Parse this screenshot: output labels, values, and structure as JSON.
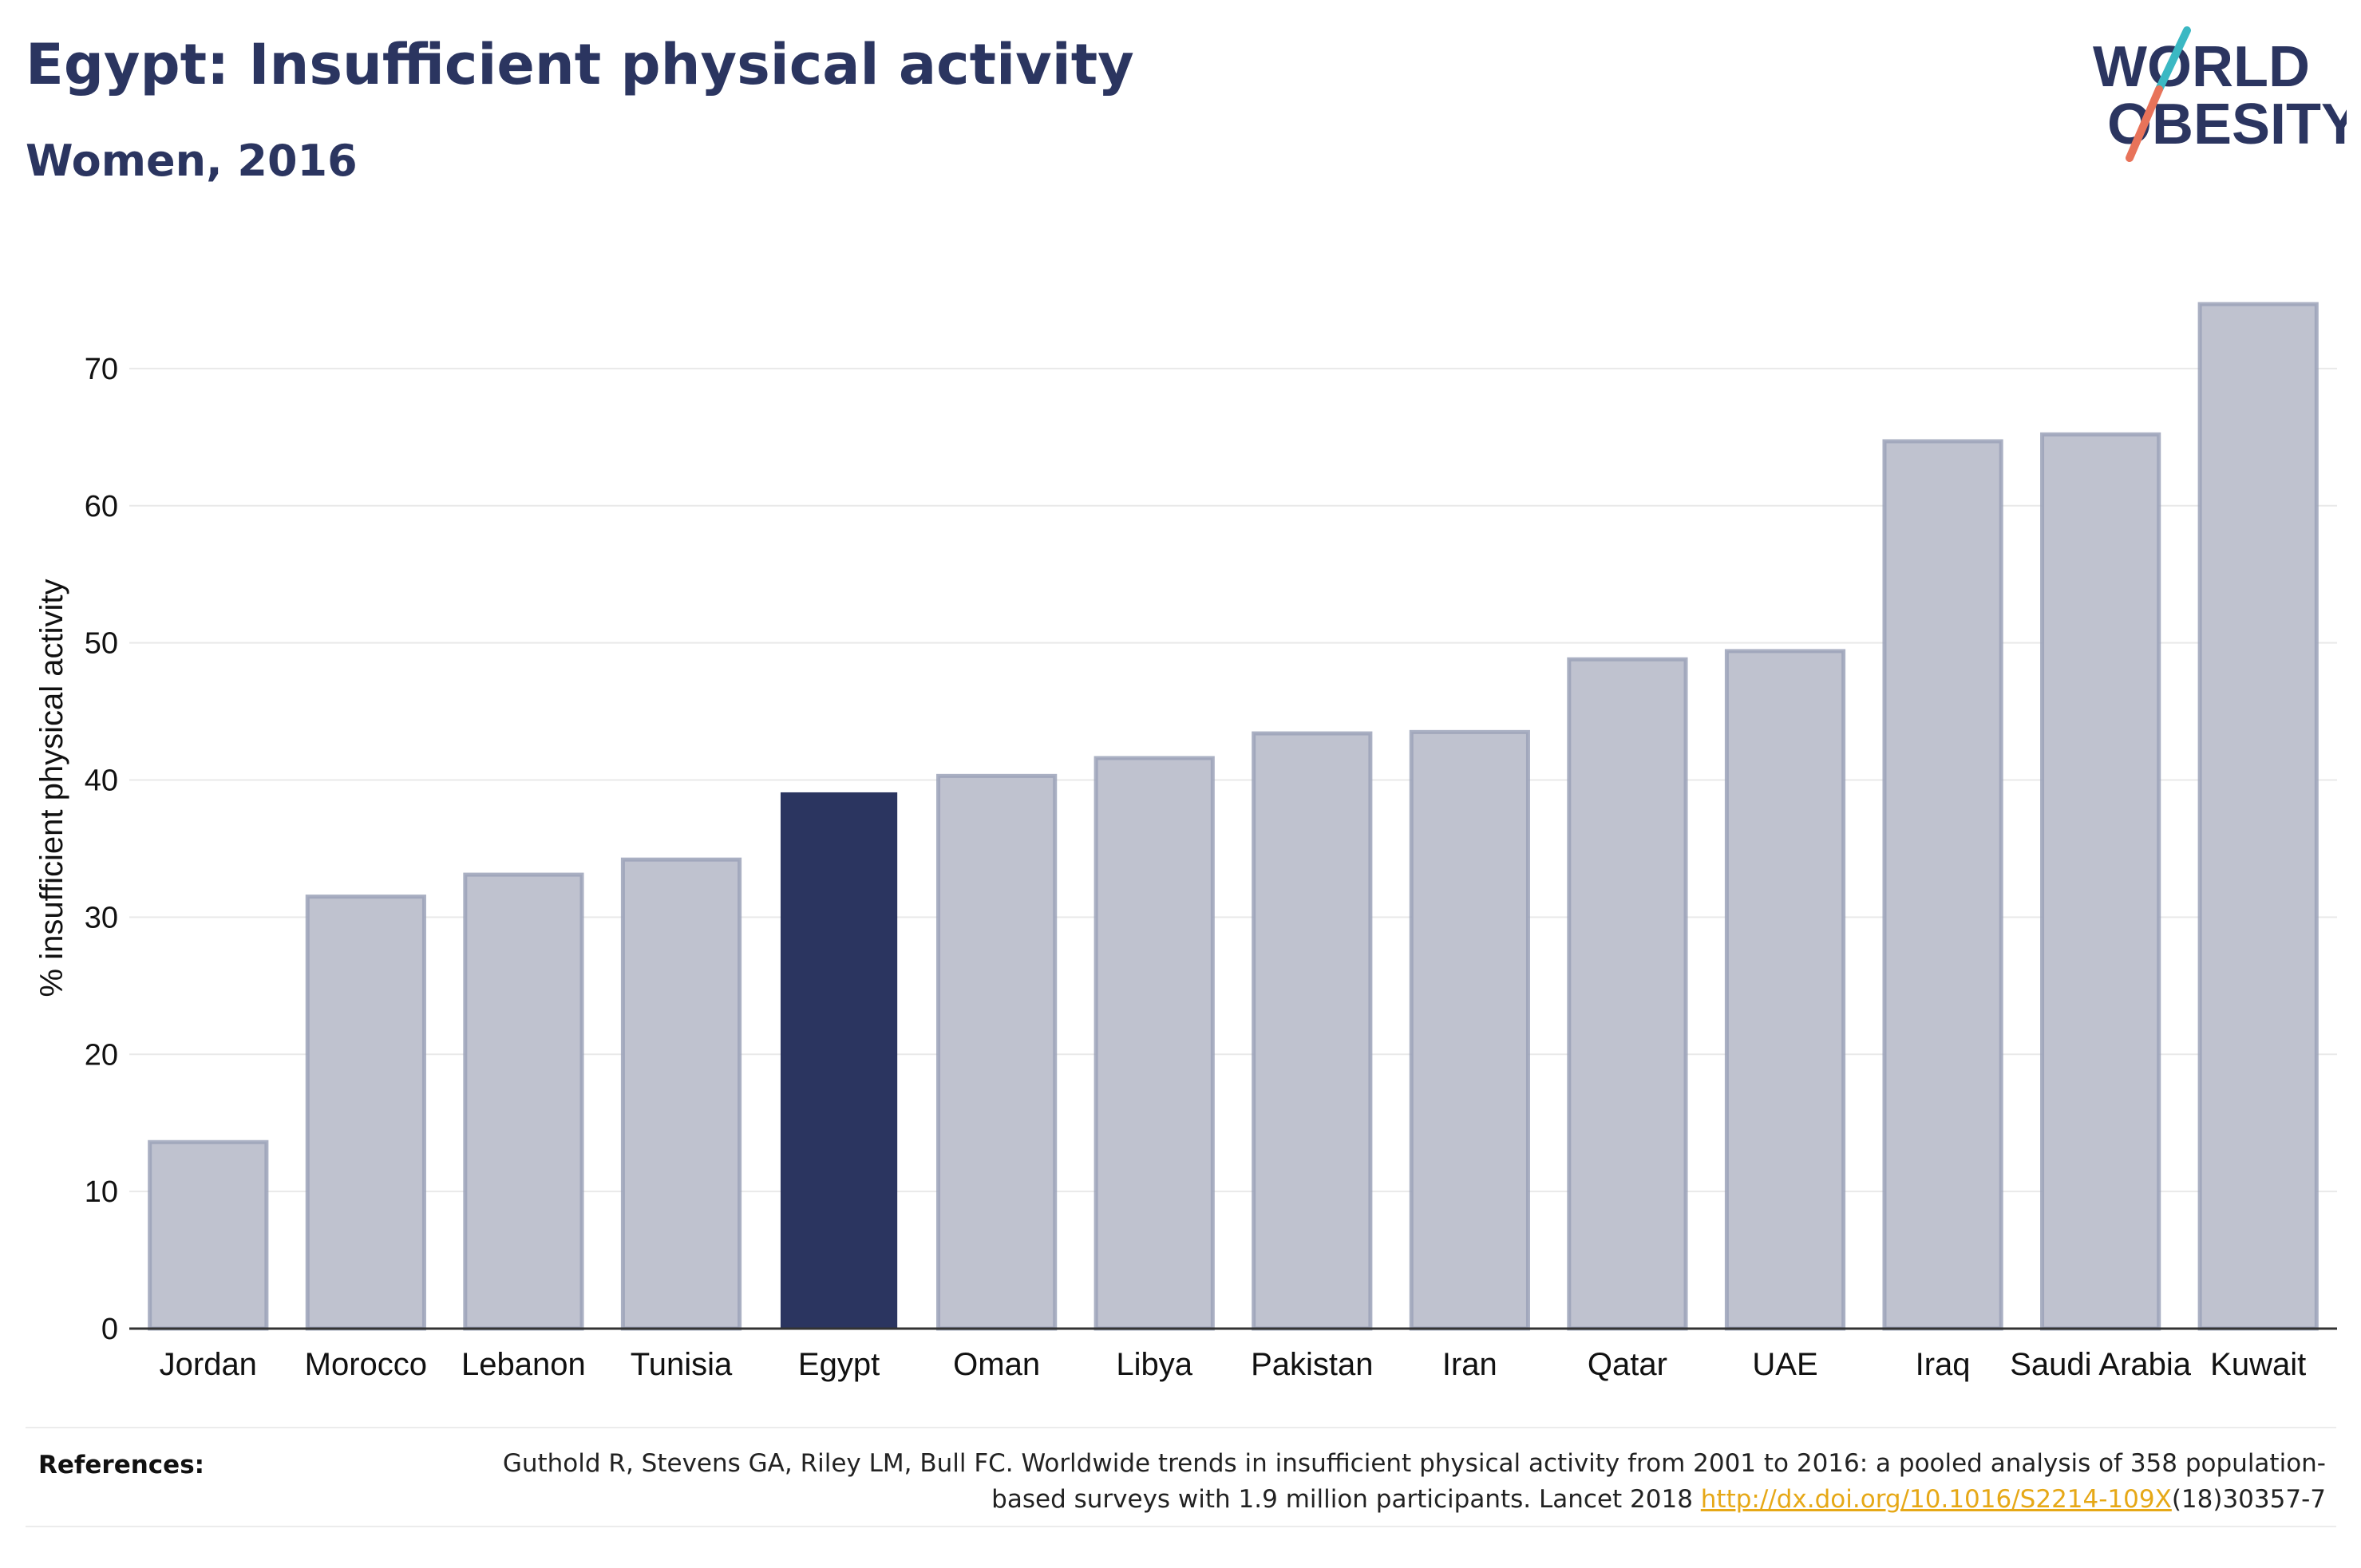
{
  "header": {
    "title": "Egypt: Insufficient physical activity",
    "subtitle": "Women, 2016"
  },
  "logo": {
    "line1": "WORLD",
    "line2": "OBESITY",
    "colors": {
      "text": "#2b3560",
      "slash_top": "#3bb8c3",
      "slash_bottom": "#e8735a"
    }
  },
  "chart_data": {
    "type": "bar",
    "categories": [
      "Jordan",
      "Morocco",
      "Lebanon",
      "Tunisia",
      "Egypt",
      "Oman",
      "Libya",
      "Pakistan",
      "Iran",
      "Qatar",
      "UAE",
      "Iraq",
      "Saudi Arabia",
      "Kuwait"
    ],
    "values": [
      13.6,
      31.5,
      33.1,
      34.2,
      39.1,
      40.3,
      41.6,
      43.4,
      43.5,
      48.8,
      49.4,
      64.7,
      65.2,
      74.7
    ],
    "highlight": "Egypt",
    "ylabel": "% insufficient physical activity",
    "ylim": [
      0,
      80
    ],
    "yticks": [
      0,
      10,
      20,
      30,
      40,
      50,
      60,
      70
    ],
    "grid": true,
    "colors": {
      "bar": "#bfc2cf",
      "bar_outline": "#9ba2b8",
      "highlight": "#2b3560",
      "grid": "#e9e9e9",
      "axis": "#333333"
    }
  },
  "references": {
    "label": "References:",
    "text_part1": "Guthold R, Stevens GA, Riley LM, Bull FC. Worldwide trends in insufficient physical activity from 2001 to 2016: a pooled analysis of 358 population-based surveys with 1.9 million participants. Lancet 2018 ",
    "link_text": "http://dx.doi.org/10.1016/S2214-109X",
    "text_part2": "(18)30357-7"
  }
}
